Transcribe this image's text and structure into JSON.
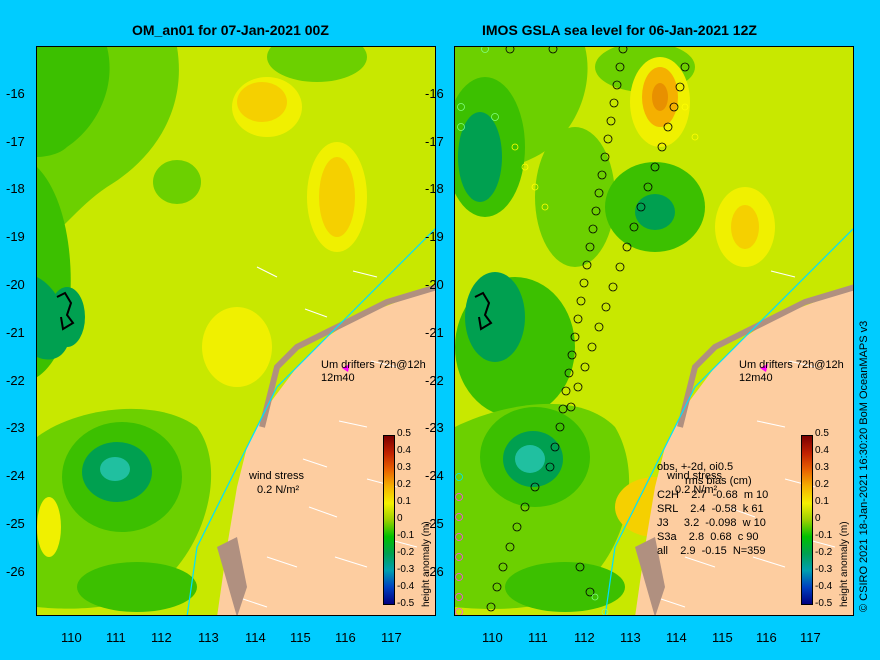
{
  "panels": [
    {
      "title": "OM_an01 for 07-Jan-2021 00Z",
      "drifter_label": "Um  drifters 72h@12h",
      "drifter_sub": "12m40",
      "wind_label": "wind stress",
      "wind_unit": "0.2 N/m²"
    },
    {
      "title": "IMOS GSLA sea level  for 06-Jan-2021 12Z",
      "drifter_label": "Um  drifters 72h@12h",
      "drifter_sub": "12m40",
      "wind_label": "wind stress",
      "wind_unit": "0.2 N/m²"
    }
  ],
  "y_ticks": [
    "-16",
    "-17",
    "-18",
    "-19",
    "-20",
    "-21",
    "-22",
    "-23",
    "-24",
    "-25",
    "-26"
  ],
  "x_ticks": [
    "110",
    "111",
    "112",
    "113",
    "114",
    "115",
    "116",
    "117"
  ],
  "colorbar": {
    "title": "height anomaly (m)",
    "labels": [
      "0.5",
      "0.4",
      "0.3",
      "0.2",
      "0.1",
      "0",
      "-0.1",
      "-0.2",
      "-0.3",
      "-0.4",
      "-0.5"
    ]
  },
  "stats": {
    "header": "obs, +-2d, oi0.5",
    "subheader": "rms  bias (cm)",
    "rows": [
      "C2H    2.7  -0.68  m 10",
      "SRL    2.4  -0.58  k 61",
      "J3     3.2  -0.098  w 10",
      "S3a    2.8  0.68  c 90",
      "all    2.9  -0.15  N=359"
    ]
  },
  "footer": "© CSIRO 2021   18-Jan-2021 16:30:20 BoM OceanMAPS v3",
  "colors": {
    "background": "#00ccff",
    "land": "#fdcda0",
    "coast_cyan": "#00e0ff"
  }
}
